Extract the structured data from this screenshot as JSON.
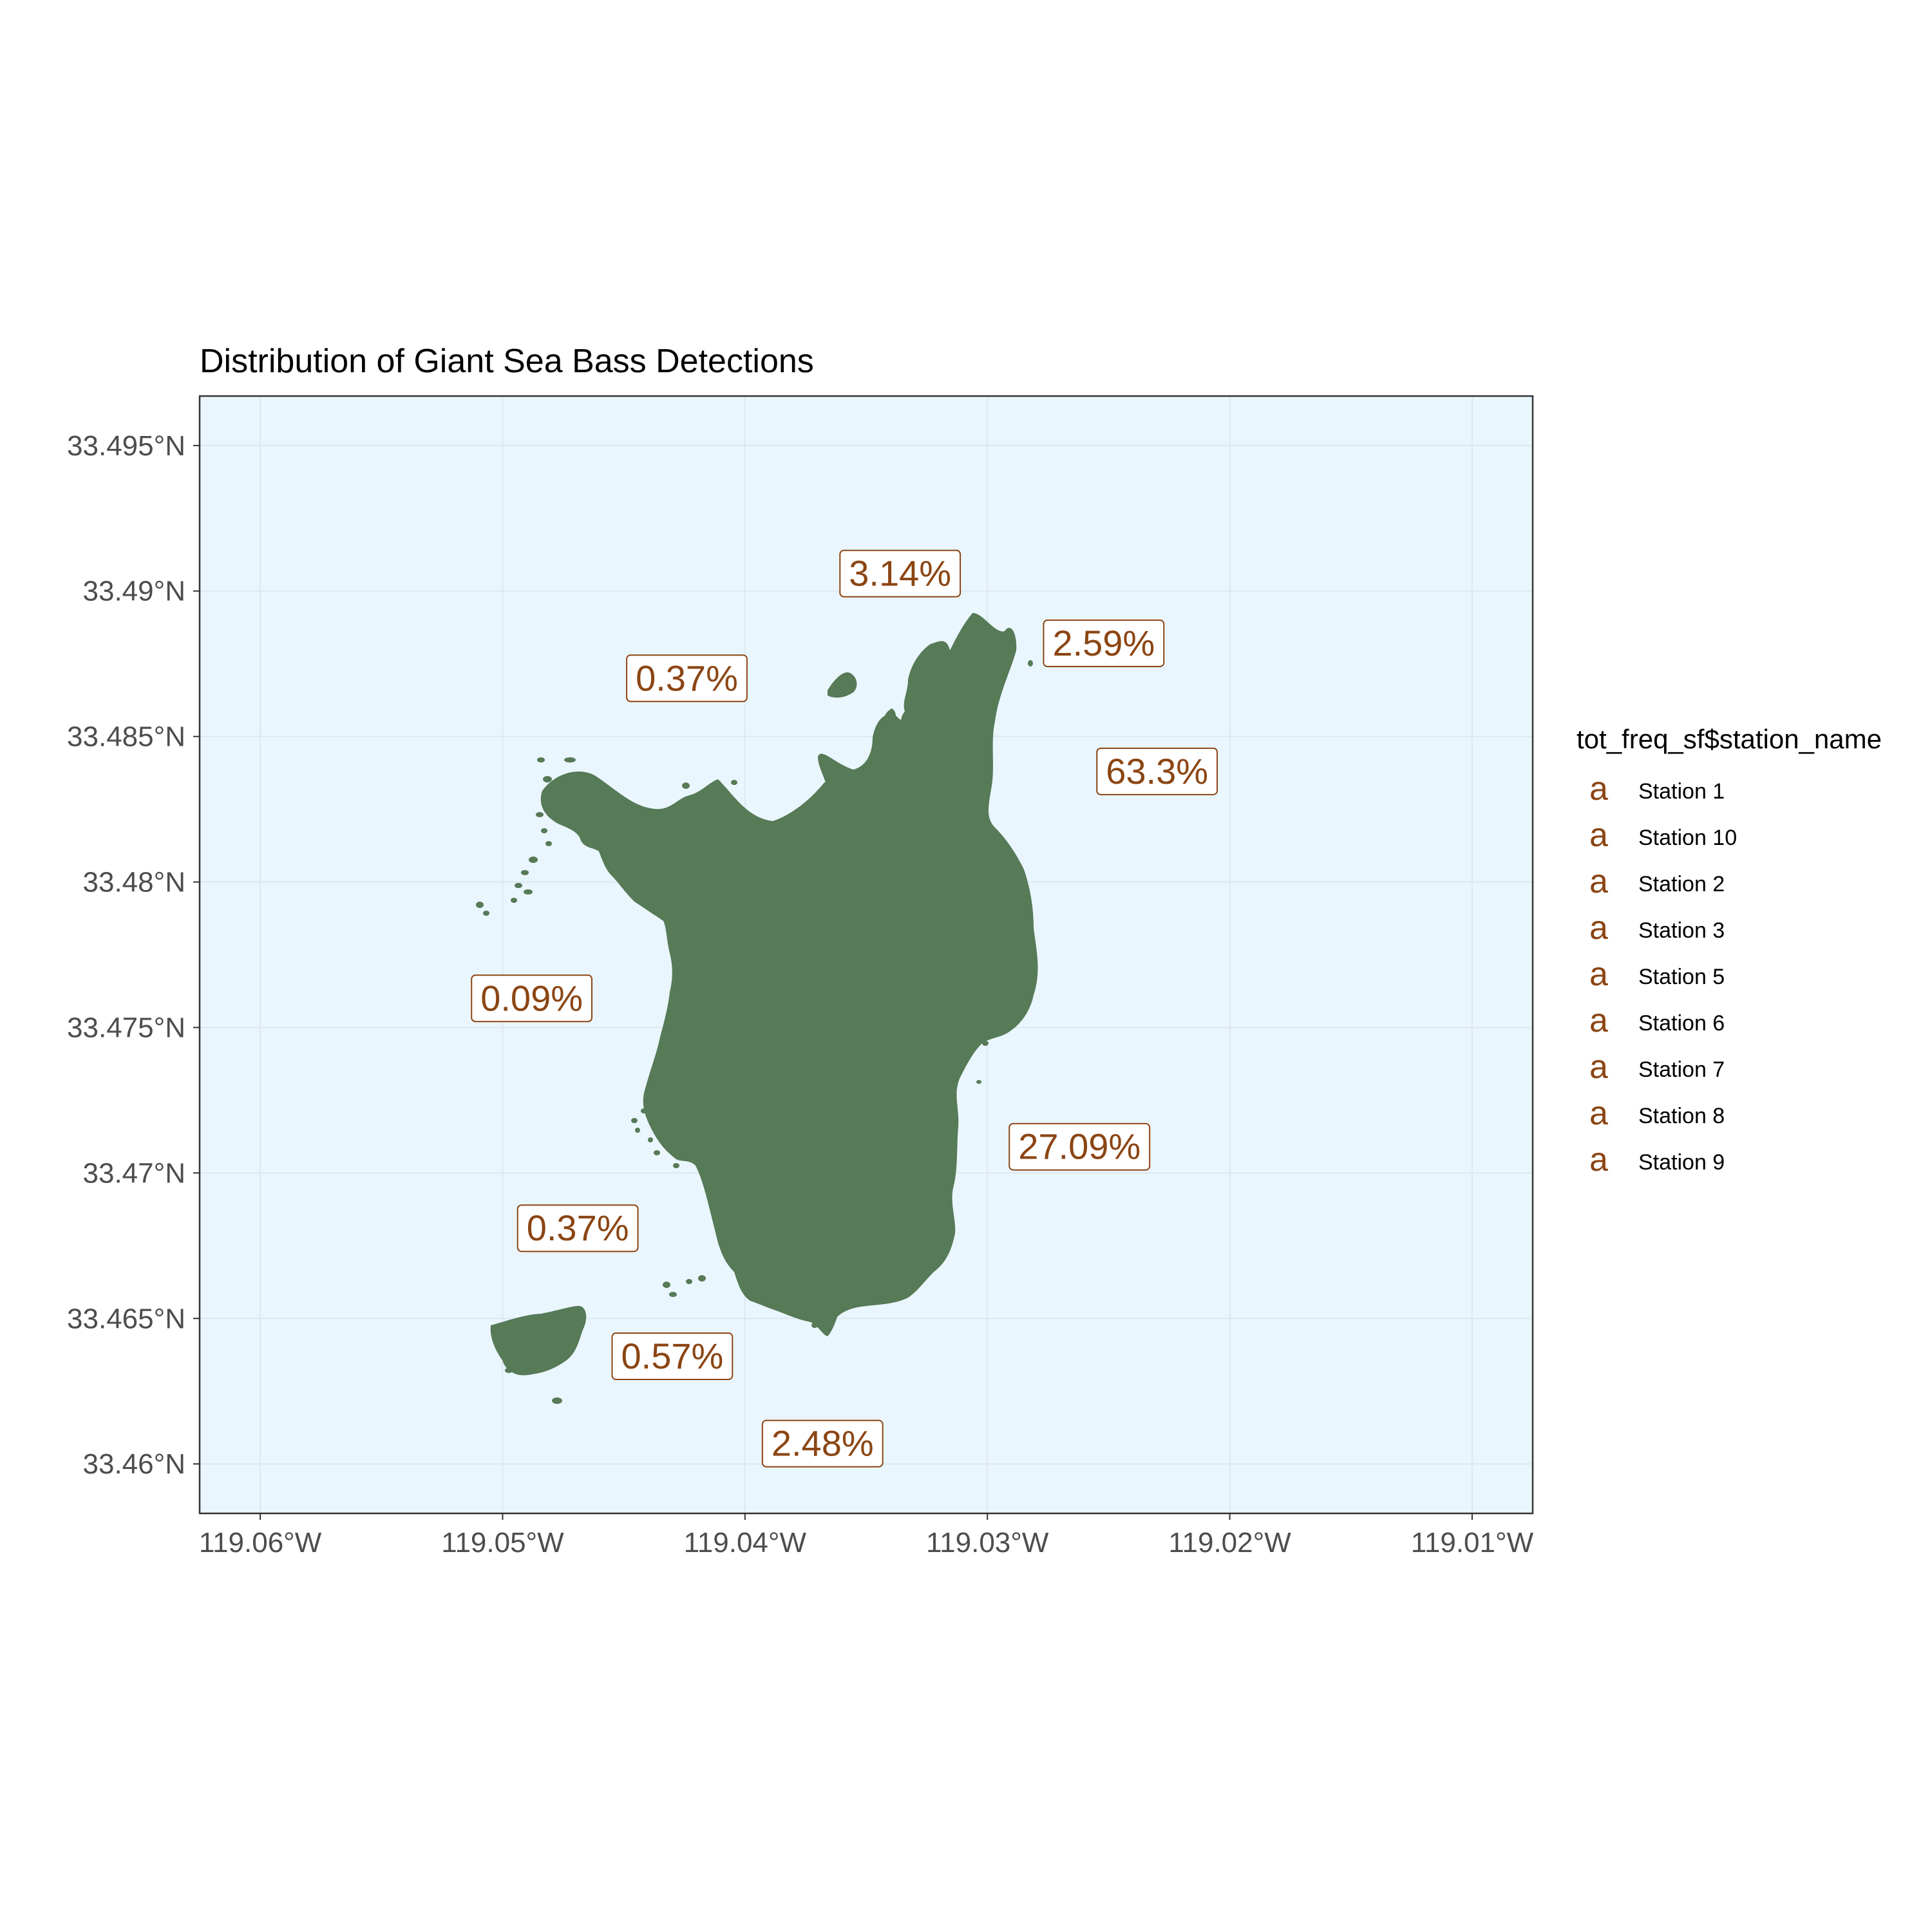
{
  "chart_data": {
    "type": "map",
    "title": "Distribution of Giant Sea Bass Detections",
    "x_axis": {
      "range": [
        -119.0625,
        -119.0075
      ],
      "ticks": [
        {
          "value": -119.06,
          "label": "119.06°W"
        },
        {
          "value": -119.05,
          "label": "119.05°W"
        },
        {
          "value": -119.04,
          "label": "119.04°W"
        },
        {
          "value": -119.03,
          "label": "119.03°W"
        },
        {
          "value": -119.02,
          "label": "119.02°W"
        },
        {
          "value": -119.01,
          "label": "119.01°W"
        }
      ]
    },
    "y_axis": {
      "range": [
        33.4583,
        33.4967
      ],
      "ticks": [
        {
          "value": 33.495,
          "label": "33.495°N"
        },
        {
          "value": 33.49,
          "label": "33.49°N"
        },
        {
          "value": 33.485,
          "label": "33.485°N"
        },
        {
          "value": 33.48,
          "label": "33.48°N"
        },
        {
          "value": 33.475,
          "label": "33.475°N"
        },
        {
          "value": 33.47,
          "label": "33.47°N"
        },
        {
          "value": 33.465,
          "label": "33.465°N"
        },
        {
          "value": 33.46,
          "label": "33.46°N"
        }
      ]
    },
    "grid": true,
    "colors": {
      "ocean": "#eaf6fe",
      "land": "#577a57",
      "label": "#8b4513",
      "grid": "#dde7ee"
    },
    "labels": [
      {
        "lon": -119.0336,
        "lat": 33.4906,
        "text": "3.14%"
      },
      {
        "lon": -119.0252,
        "lat": 33.4882,
        "text": "2.59%"
      },
      {
        "lon": -119.0424,
        "lat": 33.487,
        "text": "0.37%"
      },
      {
        "lon": -119.023,
        "lat": 33.4838,
        "text": "63.3%"
      },
      {
        "lon": -119.0488,
        "lat": 33.476,
        "text": "0.09%"
      },
      {
        "lon": -119.0262,
        "lat": 33.4709,
        "text": "27.09%"
      },
      {
        "lon": -119.0469,
        "lat": 33.4681,
        "text": "0.37%"
      },
      {
        "lon": -119.043,
        "lat": 33.4637,
        "text": "0.57%"
      },
      {
        "lon": -119.0368,
        "lat": 33.4607,
        "text": "2.48%"
      }
    ],
    "legend": {
      "title": "tot_freq_sf$station_name",
      "position": "right",
      "key_glyph": "a",
      "items": [
        "Station 1",
        "Station 10",
        "Station 2",
        "Station 3",
        "Station 5",
        "Station 6",
        "Station 7",
        "Station 8",
        "Station 9"
      ]
    }
  }
}
